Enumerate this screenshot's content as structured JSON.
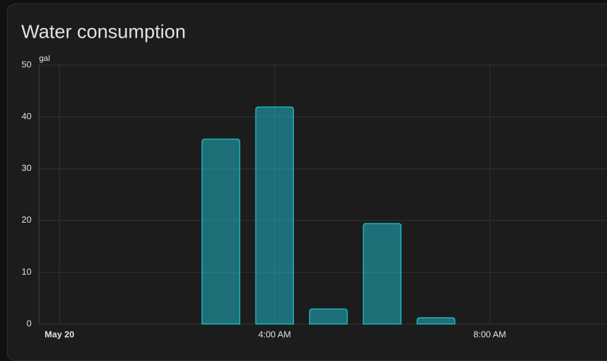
{
  "chart_data": {
    "type": "bar",
    "title": "Water consumption",
    "y_label": "gal",
    "x": [
      3,
      4,
      5,
      6,
      7
    ],
    "series": [
      {
        "name": "Water",
        "color": "#1fb5c4",
        "values": [
          35.7,
          41.9,
          2.9,
          19.4,
          1.2
        ]
      }
    ],
    "xlim": [
      -0.38,
      10.18
    ],
    "xticks": [
      {
        "value": 0,
        "label": "May 20"
      },
      {
        "value": 4,
        "label": "4:00 AM"
      },
      {
        "value": 8,
        "label": "8:00 AM"
      }
    ],
    "ylim": [
      0,
      50
    ],
    "yticks": [
      0,
      10,
      20,
      30,
      40,
      50
    ],
    "grid": true
  }
}
